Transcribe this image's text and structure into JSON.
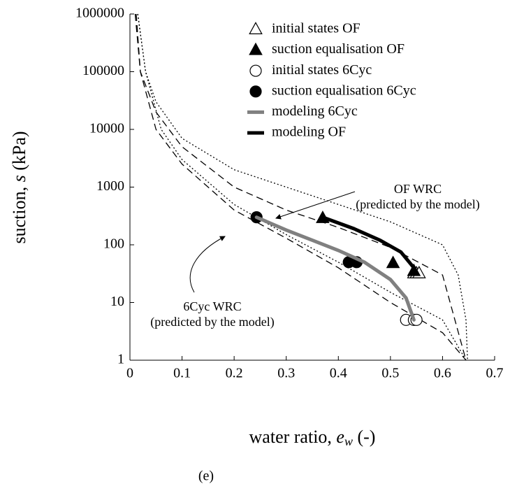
{
  "chart_data": {
    "type": "scatter",
    "caption": "(e)",
    "xlabel": {
      "text": "water ratio, ",
      "symbol": "e",
      "subscript": "w",
      "unit": " (-)"
    },
    "ylabel": {
      "text": "suction, ",
      "symbol": "s",
      "unit": " (kPa)"
    },
    "xlim": [
      0,
      0.7
    ],
    "xticks": [
      0,
      0.1,
      0.2,
      0.3,
      0.4,
      0.5,
      0.6,
      0.7
    ],
    "ylim": [
      1,
      1000000
    ],
    "yticks": [
      1,
      10,
      100,
      1000,
      10000,
      100000,
      1000000
    ],
    "log_y": true,
    "legend": "top",
    "series": [
      {
        "name": "initial states OF",
        "marker": "triangle-open",
        "color": "#000000",
        "x": [
          0.545,
          0.55,
          0.555
        ],
        "y": [
          32,
          32,
          32
        ]
      },
      {
        "name": "suction equalisation OF",
        "marker": "triangle",
        "color": "#000000",
        "x": [
          0.37,
          0.505,
          0.545
        ],
        "y": [
          290,
          48,
          35
        ]
      },
      {
        "name": "initial states 6Cyc",
        "marker": "circle-open",
        "color": "#000000",
        "x": [
          0.53,
          0.545,
          0.55
        ],
        "y": [
          5,
          5,
          5
        ]
      },
      {
        "name": "suction equalisation 6Cyc",
        "marker": "circle",
        "color": "#000000",
        "x": [
          0.243,
          0.42,
          0.435
        ],
        "y": [
          300,
          50,
          50
        ]
      },
      {
        "name": "modeling 6Cyc",
        "marker": "line",
        "color": "#808080",
        "x": [
          0.243,
          0.3,
          0.35,
          0.4,
          0.45,
          0.5,
          0.53,
          0.545
        ],
        "y": [
          300,
          180,
          120,
          80,
          50,
          25,
          12,
          5
        ]
      },
      {
        "name": "modeling OF",
        "marker": "line",
        "color": "#000000",
        "x": [
          0.37,
          0.43,
          0.48,
          0.52,
          0.545,
          0.55
        ],
        "y": [
          300,
          190,
          120,
          75,
          40,
          32
        ]
      }
    ],
    "curves": [
      {
        "dash": "dotted",
        "x": [
          0.015,
          0.03,
          0.05,
          0.1,
          0.2,
          0.3,
          0.4,
          0.5,
          0.6,
          0.63,
          0.645,
          0.648
        ],
        "y": [
          1000000,
          100000,
          30000,
          7000,
          2000,
          1000,
          500,
          250,
          100,
          30,
          5,
          1
        ]
      },
      {
        "dash": "dotted",
        "x": [
          0.015,
          0.03,
          0.06,
          0.1,
          0.2,
          0.3,
          0.4,
          0.5,
          0.6,
          0.645
        ],
        "y": [
          1000000,
          100000,
          10000,
          3000,
          500,
          150,
          50,
          15,
          5,
          1
        ]
      },
      {
        "dash": "dashed",
        "x": [
          0.012,
          0.02,
          0.05,
          0.1,
          0.2,
          0.3,
          0.4,
          0.5,
          0.6,
          0.645
        ],
        "y": [
          1000000,
          100000,
          20000,
          5000,
          1000,
          400,
          200,
          90,
          30,
          1
        ]
      },
      {
        "dash": "dashed",
        "x": [
          0.01,
          0.02,
          0.05,
          0.1,
          0.2,
          0.3,
          0.4,
          0.5,
          0.6,
          0.645
        ],
        "y": [
          1000000,
          100000,
          10000,
          2500,
          400,
          130,
          40,
          10,
          3,
          1
        ]
      }
    ],
    "annotations": [
      {
        "text": "OF WRC"
      },
      {
        "text": "(predicted by the model)"
      },
      {
        "text": "6Cyc WRC"
      },
      {
        "text": "(predicted by the model)"
      }
    ]
  }
}
